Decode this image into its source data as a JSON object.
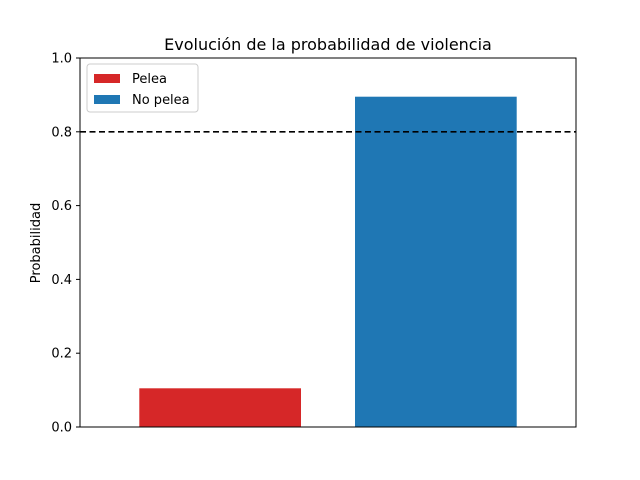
{
  "chart_data": {
    "type": "bar",
    "title": "Evolución de la probabilidad de violencia",
    "xlabel": "",
    "ylabel": "Probabilidad",
    "ylim": [
      0,
      1.0
    ],
    "yticks": [
      "0.0",
      "0.2",
      "0.4",
      "0.6",
      "0.8",
      "1.0"
    ],
    "grid": false,
    "legend_position": "top-left",
    "threshold": {
      "value": 0.8,
      "style": "dashed",
      "color": "#000000"
    },
    "series": [
      {
        "name": "Pelea",
        "value": 0.105,
        "color": "#d62728"
      },
      {
        "name": "No pelea",
        "value": 0.895,
        "color": "#1f77b4"
      }
    ]
  }
}
